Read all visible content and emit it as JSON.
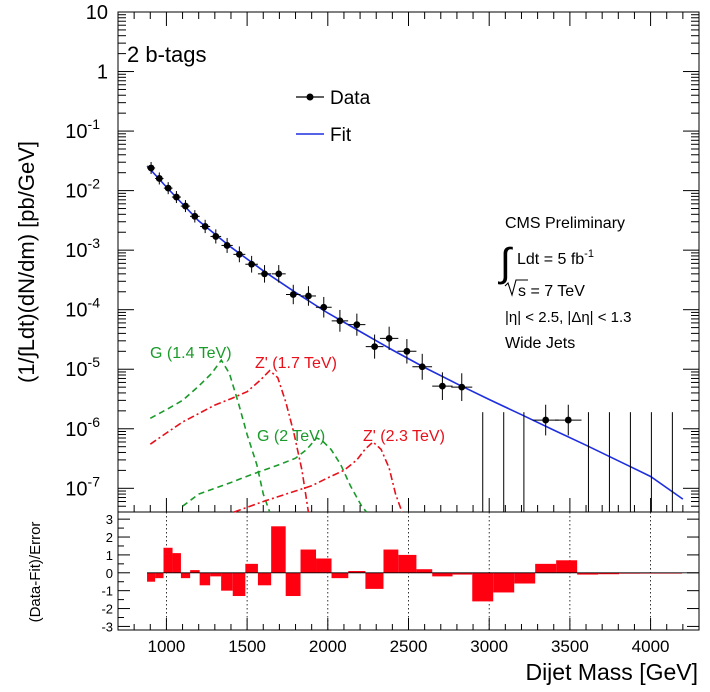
{
  "chart_data": [
    {
      "type": "scatter",
      "panel": "main",
      "ylabel": "(1/∫Ldt)(dN/dm) [pb/GeV]",
      "yscale": "log",
      "xlim": [
        700,
        4300
      ],
      "ylim": [
        4e-08,
        10
      ],
      "ytick_labels": [
        {
          "value": 10,
          "base": "10",
          "exp": ""
        },
        {
          "value": 1,
          "base": "1",
          "exp": ""
        },
        {
          "value": 0.1,
          "base": "10",
          "exp": "-1"
        },
        {
          "value": 0.01,
          "base": "10",
          "exp": "-2"
        },
        {
          "value": 0.001,
          "base": "10",
          "exp": "-3"
        },
        {
          "value": 0.0001,
          "base": "10",
          "exp": "-4"
        },
        {
          "value": 1e-05,
          "base": "10",
          "exp": "-5"
        },
        {
          "value": 1e-06,
          "base": "10",
          "exp": "-6"
        },
        {
          "value": 1e-07,
          "base": "10",
          "exp": "-7"
        }
      ],
      "tag": "2 b-tags",
      "legend": {
        "placement": "top-center",
        "data_label": "Data",
        "fit_label": "Fit"
      },
      "info": {
        "title": "CMS Preliminary",
        "lumi_prefix": "Ldt = 5 fb",
        "lumi_exp": "-1",
        "sqrts_suffix": "s = 7 TeV",
        "eta_cut": "|η| < 2.5, |Δη| < 1.3",
        "jets": "Wide Jets"
      },
      "colors": {
        "fit": "#1f2fe0",
        "g_signal": "#1a9a2a",
        "z_signal": "#e8101a",
        "data": "#000000",
        "residual": "#ff0010"
      },
      "data": [
        {
          "x": 905,
          "y": 0.024,
          "xerr": 25
        },
        {
          "x": 956,
          "y": 0.016,
          "xerr": 26
        },
        {
          "x": 1011,
          "y": 0.011,
          "xerr": 27
        },
        {
          "x": 1062,
          "y": 0.0078,
          "xerr": 28
        },
        {
          "x": 1118,
          "y": 0.0055,
          "xerr": 29
        },
        {
          "x": 1176,
          "y": 0.0037,
          "xerr": 30
        },
        {
          "x": 1240,
          "y": 0.0025,
          "xerr": 31
        },
        {
          "x": 1306,
          "y": 0.0017,
          "xerr": 33
        },
        {
          "x": 1376,
          "y": 0.0012,
          "xerr": 35
        },
        {
          "x": 1452,
          "y": 0.00085,
          "xerr": 37
        },
        {
          "x": 1528,
          "y": 0.00058,
          "xerr": 39
        },
        {
          "x": 1608,
          "y": 0.0004,
          "xerr": 41
        },
        {
          "x": 1696,
          "y": 0.0004,
          "xerr": 43
        },
        {
          "x": 1786,
          "y": 0.00018,
          "xerr": 45
        },
        {
          "x": 1880,
          "y": 0.00017,
          "xerr": 47
        },
        {
          "x": 1975,
          "y": 0.00011,
          "xerr": 49
        },
        {
          "x": 2075,
          "y": 6.5e-05,
          "xerr": 51
        },
        {
          "x": 2180,
          "y": 5.6e-05,
          "xerr": 53
        },
        {
          "x": 2290,
          "y": 2.4e-05,
          "xerr": 55
        },
        {
          "x": 2380,
          "y": 3.3e-05,
          "xerr": 57
        },
        {
          "x": 2490,
          "y": 2e-05,
          "xerr": 59
        },
        {
          "x": 2585,
          "y": 1.1e-05,
          "xerr": 61
        },
        {
          "x": 2710,
          "y": 5.2e-06,
          "xerr": 63
        },
        {
          "x": 2830,
          "y": 5e-06,
          "xerr": 65
        },
        {
          "x": 3350,
          "y": 1.4e-06,
          "xerr": 80
        },
        {
          "x": 3490,
          "y": 1.4e-06,
          "xerr": 82
        }
      ],
      "empty_bin_error_bars": [
        2960,
        3090,
        3215,
        3615,
        3745,
        3875,
        4005,
        4135
      ],
      "fit": [
        [
          880,
          0.026
        ],
        [
          1000,
          0.0115
        ],
        [
          1200,
          0.0031
        ],
        [
          1400,
          0.00112
        ],
        [
          1600,
          0.00045
        ],
        [
          1800,
          0.000195
        ],
        [
          2000,
          8.8e-05
        ],
        [
          2200,
          4.3e-05
        ],
        [
          2400,
          2.1e-05
        ],
        [
          2600,
          1.07e-05
        ],
        [
          2800,
          5.7e-06
        ],
        [
          3000,
          3.1e-06
        ],
        [
          3200,
          1.72e-06
        ],
        [
          3400,
          9.5e-07
        ],
        [
          3600,
          5.3e-07
        ],
        [
          3800,
          2.9e-07
        ],
        [
          4000,
          1.58e-07
        ],
        [
          4200,
          6.6e-08
        ]
      ],
      "signals": [
        {
          "label": "G (1.4 TeV)",
          "style": "dashed",
          "color": "#1a9a2a",
          "points": [
            [
              900,
              1.5e-06
            ],
            [
              1000,
              2.1e-06
            ],
            [
              1100,
              3e-06
            ],
            [
              1200,
              5.2e-06
            ],
            [
              1280,
              8.5e-06
            ],
            [
              1340,
              1.42e-05
            ],
            [
              1390,
              8.5e-06
            ],
            [
              1450,
              2.5e-06
            ],
            [
              1500,
              8e-07
            ],
            [
              1560,
              2.5e-07
            ],
            [
              1600,
              8e-08
            ],
            [
              1640,
              4e-08
            ]
          ]
        },
        {
          "label": "Z' (1.7 TeV)",
          "style": "dashdot",
          "color": "#e8101a",
          "points": [
            [
              900,
              5.5e-07
            ],
            [
              1000,
              8.5e-07
            ],
            [
              1100,
              1.3e-06
            ],
            [
              1200,
              1.8e-06
            ],
            [
              1300,
              2.5e-06
            ],
            [
              1400,
              3.2e-06
            ],
            [
              1500,
              4.2e-06
            ],
            [
              1580,
              6.5e-06
            ],
            [
              1640,
              9.5e-06
            ],
            [
              1690,
              7.2e-06
            ],
            [
              1740,
              2.8e-06
            ],
            [
              1790,
              8.5e-07
            ],
            [
              1840,
              2e-07
            ],
            [
              1880,
              4e-08
            ]
          ]
        },
        {
          "label": "G (2 TeV)",
          "style": "dashed",
          "color": "#1a9a2a",
          "points": [
            [
              1100,
              5e-08
            ],
            [
              1200,
              8e-08
            ],
            [
              1300,
              1e-07
            ],
            [
              1400,
              1.25e-07
            ],
            [
              1500,
              1.6e-07
            ],
            [
              1600,
              2e-07
            ],
            [
              1700,
              2.5e-07
            ],
            [
              1800,
              3.2e-07
            ],
            [
              1870,
              4.5e-07
            ],
            [
              1930,
              7e-07
            ],
            [
              1960,
              6.5e-07
            ],
            [
              2020,
              4.5e-07
            ],
            [
              2080,
              2.5e-07
            ],
            [
              2140,
              1.1e-07
            ],
            [
              2210,
              5e-08
            ],
            [
              2240,
              4e-08
            ]
          ]
        },
        {
          "label": "Z' (2.3 TeV)",
          "style": "dashdot",
          "color": "#e8101a",
          "points": [
            [
              1420,
              4e-08
            ],
            [
              1600,
              6e-08
            ],
            [
              1800,
              9e-08
            ],
            [
              1900,
              1.1e-07
            ],
            [
              2000,
              1.5e-07
            ],
            [
              2100,
              2e-07
            ],
            [
              2180,
              3e-07
            ],
            [
              2230,
              4.5e-07
            ],
            [
              2280,
              6e-07
            ],
            [
              2330,
              4.5e-07
            ],
            [
              2380,
              2.2e-07
            ],
            [
              2420,
              8e-08
            ],
            [
              2460,
              4e-08
            ]
          ]
        }
      ]
    },
    {
      "type": "bar",
      "panel": "residual",
      "ylabel": "(Data-Fit)/Error",
      "xlabel": "Dijet Mass [GeV]",
      "xlim": [
        700,
        4300
      ],
      "ylim": [
        -3.2,
        3.4
      ],
      "yticks": [
        3,
        2,
        1,
        0,
        -1,
        -2,
        -3
      ],
      "xticks": [
        1000,
        1500,
        2000,
        2500,
        3000,
        3500,
        4000
      ],
      "dotted_gridlines_x": [
        1000,
        1500,
        2000,
        2500,
        3000,
        3500,
        4000
      ],
      "bins": [
        {
          "lo": 880,
          "hi": 930,
          "v": -0.5
        },
        {
          "lo": 930,
          "hi": 982,
          "v": -0.3
        },
        {
          "lo": 982,
          "hi": 1038,
          "v": 1.4
        },
        {
          "lo": 1038,
          "hi": 1090,
          "v": 1.1
        },
        {
          "lo": 1090,
          "hi": 1147,
          "v": -0.3
        },
        {
          "lo": 1147,
          "hi": 1206,
          "v": 0.15
        },
        {
          "lo": 1206,
          "hi": 1271,
          "v": -0.7
        },
        {
          "lo": 1271,
          "hi": 1339,
          "v": -0.2
        },
        {
          "lo": 1339,
          "hi": 1411,
          "v": -1.0
        },
        {
          "lo": 1411,
          "hi": 1489,
          "v": -1.3
        },
        {
          "lo": 1489,
          "hi": 1567,
          "v": 0.5
        },
        {
          "lo": 1567,
          "hi": 1649,
          "v": -0.7
        },
        {
          "lo": 1649,
          "hi": 1739,
          "v": 2.6
        },
        {
          "lo": 1739,
          "hi": 1831,
          "v": -1.3
        },
        {
          "lo": 1831,
          "hi": 1927,
          "v": 1.3
        },
        {
          "lo": 1927,
          "hi": 2023,
          "v": 0.8
        },
        {
          "lo": 2023,
          "hi": 2127,
          "v": -0.3
        },
        {
          "lo": 2127,
          "hi": 2233,
          "v": 0.1
        },
        {
          "lo": 2233,
          "hi": 2345,
          "v": -0.9
        },
        {
          "lo": 2345,
          "hi": 2437,
          "v": 1.3
        },
        {
          "lo": 2437,
          "hi": 2549,
          "v": 1.0
        },
        {
          "lo": 2549,
          "hi": 2647,
          "v": 0.2
        },
        {
          "lo": 2647,
          "hi": 2773,
          "v": -0.2
        },
        {
          "lo": 2773,
          "hi": 2895,
          "v": -0.1
        },
        {
          "lo": 2895,
          "hi": 3025,
          "v": -1.6
        },
        {
          "lo": 3025,
          "hi": 3155,
          "v": -1.1
        },
        {
          "lo": 3155,
          "hi": 3285,
          "v": -0.6
        },
        {
          "lo": 3285,
          "hi": 3415,
          "v": 0.5
        },
        {
          "lo": 3415,
          "hi": 3545,
          "v": 0.7
        },
        {
          "lo": 3545,
          "hi": 3675,
          "v": -0.1
        },
        {
          "lo": 3675,
          "hi": 3805,
          "v": -0.08
        },
        {
          "lo": 3805,
          "hi": 3935,
          "v": -0.05
        },
        {
          "lo": 3935,
          "hi": 4065,
          "v": -0.03
        },
        {
          "lo": 4065,
          "hi": 4195,
          "v": -0.02
        }
      ]
    }
  ]
}
